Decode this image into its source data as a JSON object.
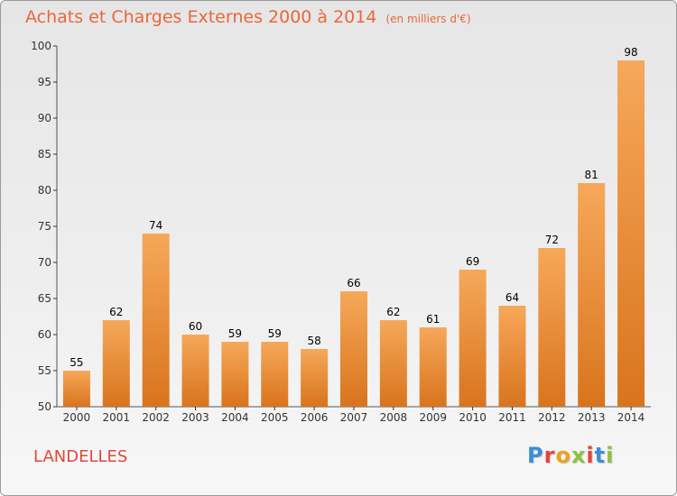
{
  "header": {
    "title": "Achats et Charges Externes 2000 à 2014",
    "unit": "(en milliers d'€)"
  },
  "footer": {
    "location": "LANDELLES",
    "logo_text": "Proxiti",
    "logo_colors": [
      "#3a8fd8",
      "#e8423a",
      "#f0a020",
      "#8bc23f",
      "#e8423a",
      "#3a8fd8",
      "#8bc23f"
    ]
  },
  "colors": {
    "bar_top": "#f6a85a",
    "bar_bottom": "#d9741d",
    "label": "#000000",
    "axis": "#555555",
    "grid_tick": "#333333"
  },
  "chart_data": {
    "type": "bar",
    "categories": [
      "2000",
      "2001",
      "2002",
      "2003",
      "2004",
      "2005",
      "2006",
      "2007",
      "2008",
      "2009",
      "2010",
      "2011",
      "2012",
      "2013",
      "2014"
    ],
    "values": [
      55,
      62,
      74,
      60,
      59,
      59,
      58,
      66,
      62,
      61,
      69,
      64,
      72,
      81,
      98
    ],
    "ylim": [
      50,
      100
    ],
    "yticks": [
      50,
      55,
      60,
      65,
      70,
      75,
      80,
      85,
      90,
      95,
      100
    ],
    "grid": false,
    "data_labels": true
  }
}
